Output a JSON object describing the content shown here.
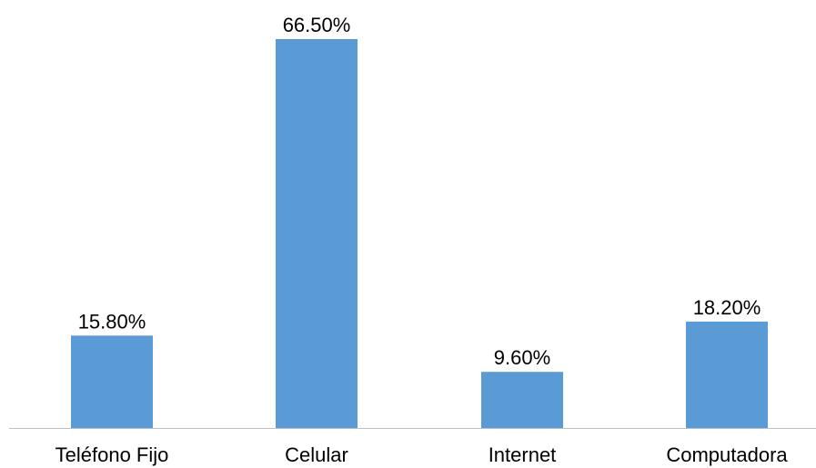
{
  "chart_data": {
    "type": "bar",
    "categories": [
      "Teléfono Fijo",
      "Celular",
      "Internet",
      "Computadora"
    ],
    "values": [
      15.8,
      66.5,
      9.6,
      18.2
    ],
    "data_labels": [
      "15.80%",
      "66.50%",
      "9.60%",
      "18.20%"
    ],
    "unit": "%",
    "ylim": [
      0,
      66.5
    ],
    "grid": false,
    "legend": "none",
    "bar_color": "#5B9BD5",
    "axis_color": "#BFBFBF"
  }
}
